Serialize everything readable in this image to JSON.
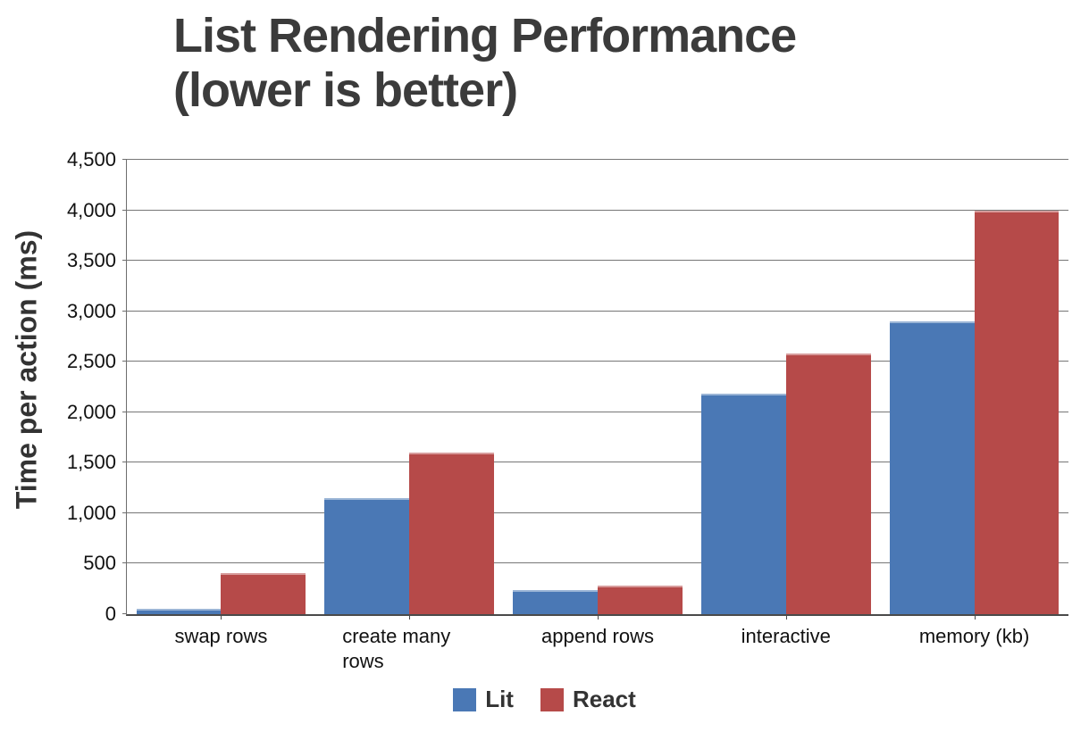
{
  "chart_data": {
    "type": "bar",
    "title": "List Rendering Performance (lower is better)",
    "title_lines": [
      "List Rendering Performance",
      "(lower is better)"
    ],
    "ylabel": "Time per action (ms)",
    "xlabel": "",
    "categories": [
      "swap rows",
      "create many rows",
      "append rows",
      "interactive",
      "memory (kb)"
    ],
    "series": [
      {
        "name": "Lit",
        "color": "#4a78b5",
        "values": [
          50,
          1150,
          240,
          2180,
          2900
        ]
      },
      {
        "name": "React",
        "color": "#b64a49",
        "values": [
          410,
          1600,
          280,
          2580,
          4000
        ]
      }
    ],
    "ylim": [
      0,
      4500
    ],
    "ytick_step": 500,
    "ytick_labels": [
      "0",
      "500",
      "1,000",
      "1,500",
      "2,000",
      "2,500",
      "3,000",
      "3,500",
      "4,000",
      "4,500"
    ],
    "grid": true,
    "legend_position": "bottom",
    "colors": {
      "gridline": "#767676",
      "axis": "#4a4a4a",
      "title_text": "#3b3b3b",
      "tick_text": "#111111",
      "legend_text": "#333333"
    }
  }
}
